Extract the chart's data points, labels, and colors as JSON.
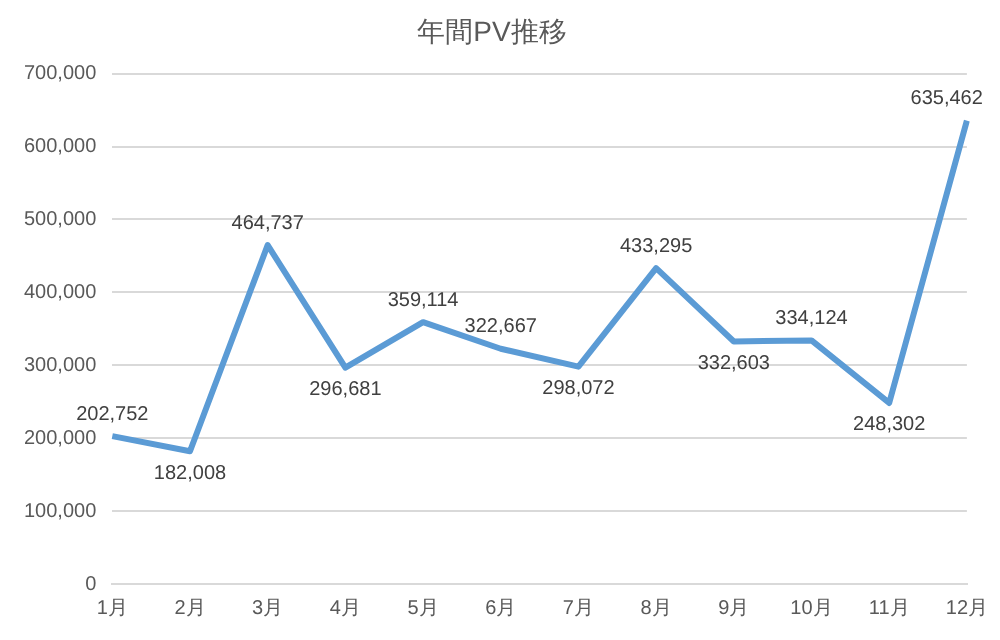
{
  "chart_data": {
    "type": "line",
    "title": "年間PV推移",
    "categories": [
      "1月",
      "2月",
      "3月",
      "4月",
      "5月",
      "6月",
      "7月",
      "8月",
      "9月",
      "10月",
      "11月",
      "12月"
    ],
    "series": [
      {
        "color": "#5b9bd5",
        "values": [
          202752,
          182008,
          464737,
          296681,
          359114,
          322667,
          298072,
          433295,
          332603,
          334124,
          248302,
          635462
        ],
        "value_labels": [
          "202,752",
          "182,008",
          "464,737",
          "296,681",
          "359,114",
          "322,667",
          "298,072",
          "433,295",
          "332,603",
          "334,124",
          "248,302",
          "635,462"
        ]
      }
    ],
    "ylim": [
      0,
      700000
    ],
    "yticks": [
      0,
      {
        "value": 100000,
        "label": "100,000"
      },
      {
        "value": 200000,
        "label": "200,000"
      },
      {
        "value": 300000,
        "label": "300,000"
      },
      {
        "value": 400000,
        "label": "400,000"
      },
      {
        "value": 500000,
        "label": "500,000"
      },
      {
        "value": 600000,
        "label": "600,000"
      },
      {
        "value": 700000,
        "label": "700,000"
      }
    ],
    "grid": "y",
    "legend": false,
    "marker": "none",
    "line_style": "solid"
  }
}
